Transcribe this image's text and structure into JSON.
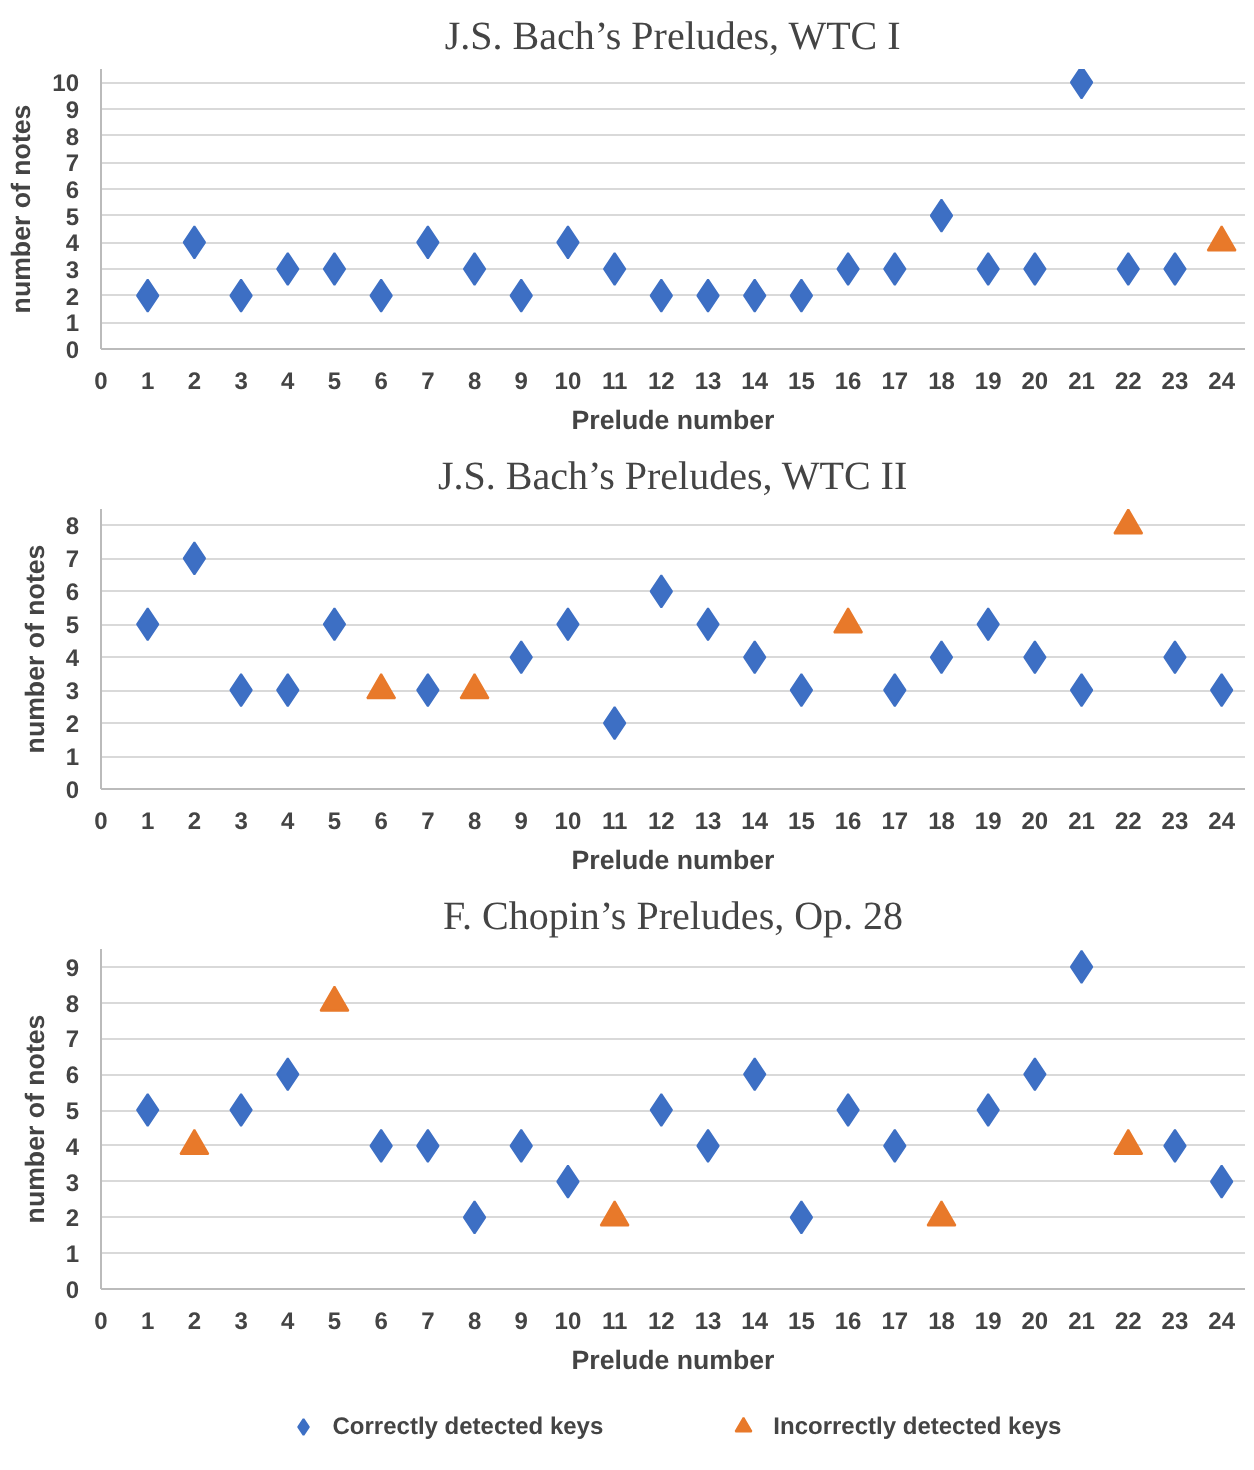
{
  "chart_data": [
    {
      "type": "scatter",
      "title": "J.S. Bach’s Preludes, WTC I",
      "xlabel": "Prelude number",
      "ylabel": "number of notes",
      "xlim": [
        0,
        24.5
      ],
      "xticks": [
        0,
        1,
        2,
        3,
        4,
        5,
        6,
        7,
        8,
        9,
        10,
        11,
        12,
        13,
        14,
        15,
        16,
        17,
        18,
        19,
        20,
        21,
        22,
        23,
        24
      ],
      "ylim": [
        0,
        10.5
      ],
      "yticks": [
        0,
        1,
        2,
        3,
        4,
        5,
        6,
        7,
        8,
        9,
        10
      ],
      "grid": "y",
      "legend": false,
      "series": [
        {
          "color": "#3d6fc4",
          "marker": "diamond",
          "x": [
            1,
            2,
            3,
            4,
            5,
            6,
            7,
            8,
            9,
            10,
            11,
            12,
            13,
            14,
            15,
            16,
            17,
            18,
            19,
            20,
            21,
            22,
            23
          ],
          "values": [
            2,
            4,
            2,
            3,
            3,
            2,
            4,
            3,
            2,
            4,
            3,
            2,
            2,
            2,
            2,
            3,
            3,
            5,
            3,
            3,
            10,
            3,
            3
          ]
        },
        {
          "color": "#e8792a",
          "marker": "triangle",
          "x": [
            24
          ],
          "values": [
            4
          ]
        }
      ]
    },
    {
      "type": "scatter",
      "title": "J.S. Bach’s Preludes, WTC II",
      "xlabel": "Prelude number",
      "ylabel": "number of notes",
      "xlim": [
        0,
        24.5
      ],
      "xticks": [
        0,
        1,
        2,
        3,
        4,
        5,
        6,
        7,
        8,
        9,
        10,
        11,
        12,
        13,
        14,
        15,
        16,
        17,
        18,
        19,
        20,
        21,
        22,
        23,
        24
      ],
      "ylim": [
        0,
        8.5
      ],
      "yticks": [
        0,
        1,
        2,
        3,
        4,
        5,
        6,
        7,
        8
      ],
      "grid": "y",
      "legend": false,
      "series": [
        {
          "color": "#3d6fc4",
          "marker": "diamond",
          "x": [
            1,
            2,
            3,
            4,
            5,
            7,
            9,
            10,
            11,
            12,
            13,
            14,
            15,
            17,
            18,
            19,
            20,
            21,
            23,
            24
          ],
          "values": [
            5,
            7,
            3,
            3,
            5,
            3,
            4,
            5,
            2,
            6,
            5,
            4,
            3,
            3,
            4,
            5,
            4,
            3,
            4,
            3
          ]
        },
        {
          "color": "#e8792a",
          "marker": "triangle",
          "x": [
            6,
            8,
            16,
            22
          ],
          "values": [
            3,
            3,
            5,
            8
          ]
        }
      ]
    },
    {
      "type": "scatter",
      "title": "F. Chopin’s Preludes, Op. 28",
      "xlabel": "Prelude number",
      "ylabel": "number of notes",
      "xlim": [
        0,
        24.5
      ],
      "xticks": [
        0,
        1,
        2,
        3,
        4,
        5,
        6,
        7,
        8,
        9,
        10,
        11,
        12,
        13,
        14,
        15,
        16,
        17,
        18,
        19,
        20,
        21,
        22,
        23,
        24
      ],
      "ylim": [
        0,
        9.5
      ],
      "yticks": [
        0,
        1,
        2,
        3,
        4,
        5,
        6,
        7,
        8,
        9
      ],
      "grid": "y",
      "legend": "bottom",
      "series": [
        {
          "name": "Correctly detected keys",
          "color": "#3d6fc4",
          "marker": "diamond",
          "x": [
            1,
            3,
            4,
            6,
            7,
            8,
            9,
            10,
            12,
            13,
            14,
            15,
            16,
            17,
            19,
            20,
            21,
            23,
            24
          ],
          "values": [
            5,
            5,
            6,
            4,
            4,
            2,
            4,
            3,
            5,
            4,
            6,
            2,
            5,
            4,
            5,
            6,
            9,
            4,
            3
          ]
        },
        {
          "name": "Incorrectly detected keys",
          "color": "#e8792a",
          "marker": "triangle",
          "x": [
            2,
            5,
            11,
            18,
            22
          ],
          "values": [
            4,
            8,
            2,
            2,
            4
          ]
        }
      ]
    }
  ]
}
